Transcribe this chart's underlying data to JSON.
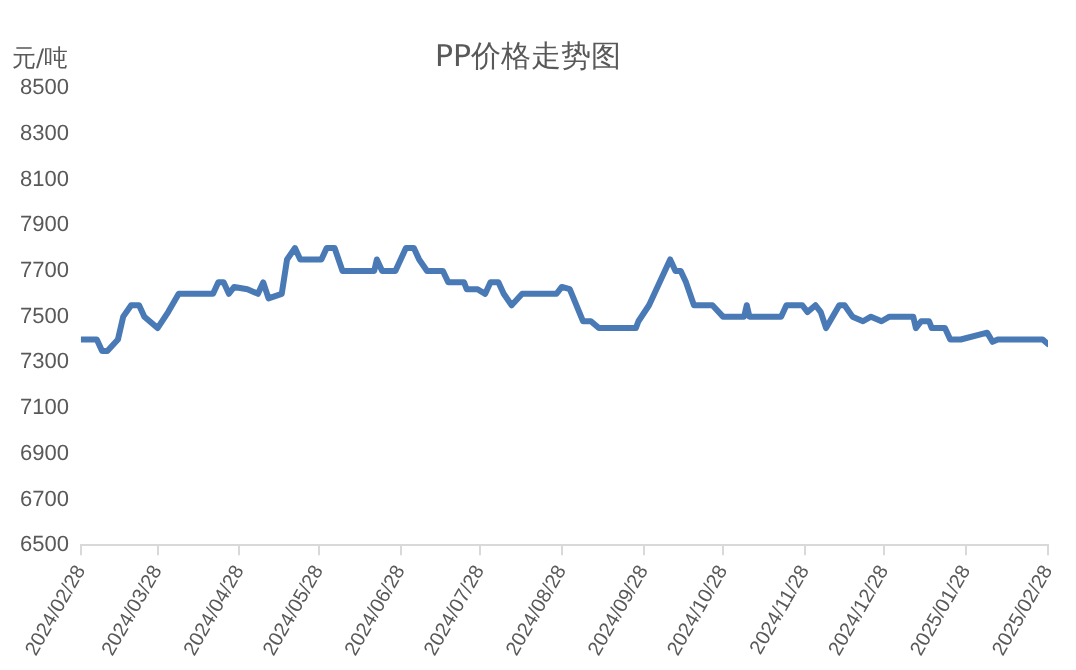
{
  "chart_data": {
    "type": "line",
    "title": "PP价格走势图",
    "ylabel": "元/吨",
    "x": [
      "2024-02-28",
      "2024-03-05",
      "2024-03-07",
      "2024-03-09",
      "2024-03-13",
      "2024-03-15",
      "2024-03-18",
      "2024-03-21",
      "2024-03-23",
      "2024-03-25",
      "2024-03-28",
      "2024-04-01",
      "2024-04-05",
      "2024-04-18",
      "2024-04-20",
      "2024-04-22",
      "2024-04-24",
      "2024-04-26",
      "2024-05-01",
      "2024-05-05",
      "2024-05-07",
      "2024-05-09",
      "2024-05-14",
      "2024-05-16",
      "2024-05-19",
      "2024-05-21",
      "2024-05-29",
      "2024-05-31",
      "2024-06-03",
      "2024-06-06",
      "2024-06-18",
      "2024-06-19",
      "2024-06-21",
      "2024-06-26",
      "2024-06-30",
      "2024-07-03",
      "2024-07-05",
      "2024-07-08",
      "2024-07-14",
      "2024-07-16",
      "2024-07-22",
      "2024-07-23",
      "2024-07-27",
      "2024-07-30",
      "2024-08-01",
      "2024-08-04",
      "2024-08-06",
      "2024-08-09",
      "2024-08-13",
      "2024-08-26",
      "2024-08-28",
      "2024-08-31",
      "2024-09-05",
      "2024-09-08",
      "2024-09-11",
      "2024-09-25",
      "2024-09-26",
      "2024-09-30",
      "2024-10-08",
      "2024-10-10",
      "2024-10-12",
      "2024-10-14",
      "2024-10-17",
      "2024-10-24",
      "2024-10-28",
      "2024-11-05",
      "2024-11-06",
      "2024-11-07",
      "2024-11-19",
      "2024-11-21",
      "2024-11-27",
      "2024-11-29",
      "2024-12-02",
      "2024-12-04",
      "2024-12-06",
      "2024-12-11",
      "2024-12-13",
      "2024-12-16",
      "2024-12-20",
      "2024-12-23",
      "2024-12-27",
      "2024-12-30",
      "2025-01-08",
      "2025-01-09",
      "2025-01-11",
      "2025-01-14",
      "2025-01-15",
      "2025-01-20",
      "2025-01-22",
      "2025-01-26",
      "2025-02-05",
      "2025-02-07",
      "2025-02-09",
      "2025-02-26",
      "2025-02-28"
    ],
    "series": [
      {
        "color": "#4a7ab5",
        "values": [
          7400,
          7400,
          7350,
          7350,
          7400,
          7500,
          7550,
          7550,
          7500,
          7480,
          7450,
          7520,
          7600,
          7600,
          7650,
          7650,
          7600,
          7630,
          7620,
          7600,
          7650,
          7580,
          7600,
          7750,
          7800,
          7750,
          7750,
          7800,
          7800,
          7700,
          7700,
          7750,
          7700,
          7700,
          7800,
          7800,
          7750,
          7700,
          7700,
          7650,
          7650,
          7620,
          7620,
          7600,
          7650,
          7650,
          7600,
          7550,
          7600,
          7600,
          7630,
          7620,
          7480,
          7480,
          7450,
          7450,
          7480,
          7550,
          7750,
          7700,
          7700,
          7650,
          7550,
          7550,
          7500,
          7500,
          7550,
          7500,
          7500,
          7550,
          7550,
          7520,
          7550,
          7520,
          7450,
          7550,
          7550,
          7500,
          7480,
          7500,
          7480,
          7500,
          7500,
          7450,
          7480,
          7480,
          7450,
          7450,
          7400,
          7400,
          7430,
          7390,
          7400,
          7400,
          7380
        ]
      }
    ],
    "xlim": [
      "2024-02-28",
      "2025-02-28"
    ],
    "xticks": [
      {
        "value": "2024-02-28",
        "label": "2024/02/28"
      },
      {
        "value": "2024-03-28",
        "label": "2024/03/28"
      },
      {
        "value": "2024-04-28",
        "label": "2024/04/28"
      },
      {
        "value": "2024-05-28",
        "label": "2024/05/28"
      },
      {
        "value": "2024-06-28",
        "label": "2024/06/28"
      },
      {
        "value": "2024-07-28",
        "label": "2024/07/28"
      },
      {
        "value": "2024-08-28",
        "label": "2024/08/28"
      },
      {
        "value": "2024-09-28",
        "label": "2024/09/28"
      },
      {
        "value": "2024-10-28",
        "label": "2024/10/28"
      },
      {
        "value": "2024-11-28",
        "label": "2024/11/28"
      },
      {
        "value": "2024-12-28",
        "label": "2024/12/28"
      },
      {
        "value": "2025-01-28",
        "label": "2025/01/28"
      },
      {
        "value": "2025-02-28",
        "label": "2025/02/28"
      }
    ],
    "ylim": [
      6500,
      8500
    ],
    "yticks": [
      6500,
      6700,
      6900,
      7100,
      7300,
      7500,
      7700,
      7900,
      8100,
      8300,
      8500
    ],
    "grid": false,
    "legend": false,
    "marker": "none",
    "line_style": "solid"
  }
}
